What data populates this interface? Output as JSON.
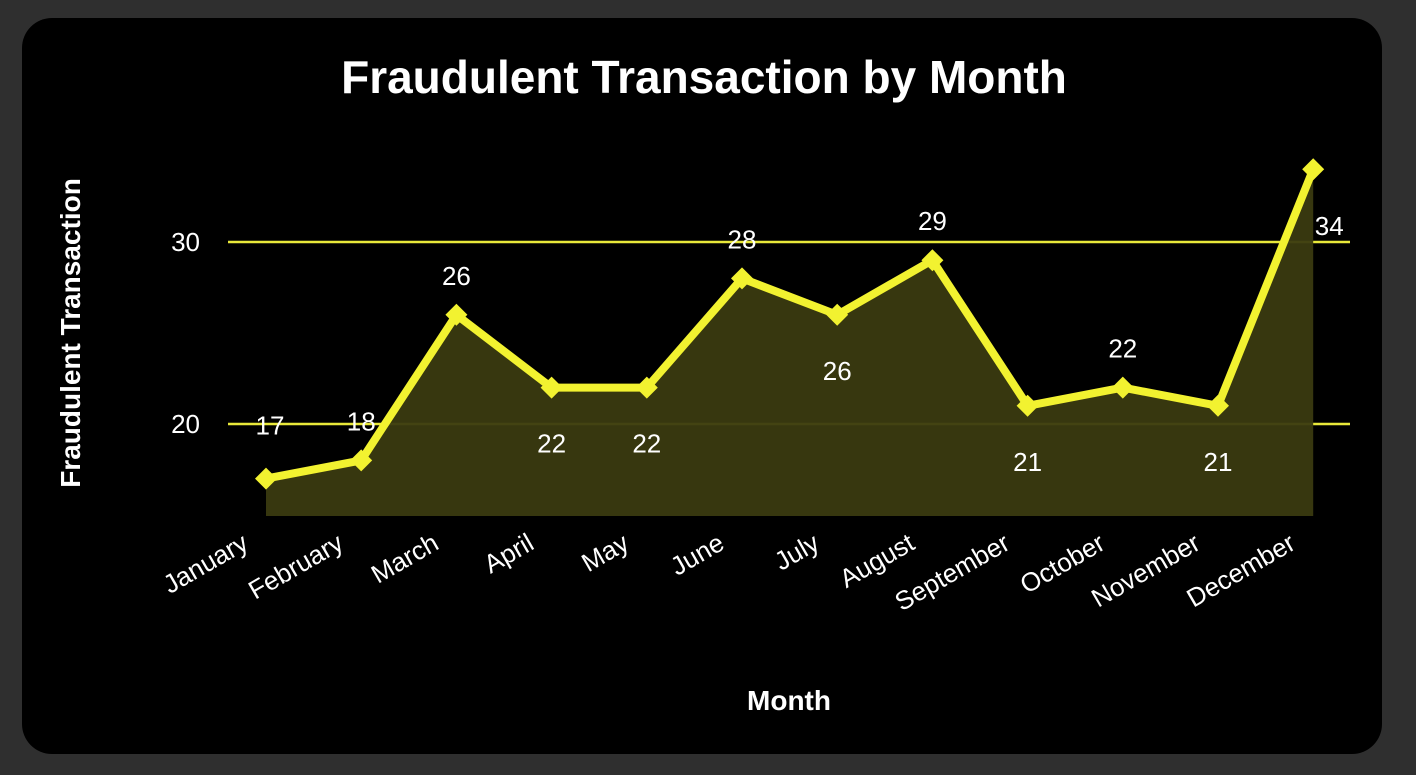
{
  "colors": {
    "background": "#000000",
    "outer_background": "#2f2f2f",
    "line": "#f2f230",
    "area_fill": "#3a3a10",
    "gridline": "#e8e83a",
    "text": "#ffffff"
  },
  "chart_data": {
    "type": "area",
    "title": "Fraudulent Transaction by Month",
    "xlabel": "Month",
    "ylabel": "Fraudulent Transaction",
    "categories": [
      "January",
      "February",
      "March",
      "April",
      "May",
      "June",
      "July",
      "August",
      "September",
      "October",
      "November",
      "December"
    ],
    "values": [
      17,
      18,
      26,
      22,
      22,
      28,
      26,
      29,
      21,
      22,
      21,
      34
    ],
    "y_ticks": [
      "20",
      "30"
    ],
    "ylim": [
      15,
      34
    ],
    "grid": true,
    "legend": "none"
  }
}
